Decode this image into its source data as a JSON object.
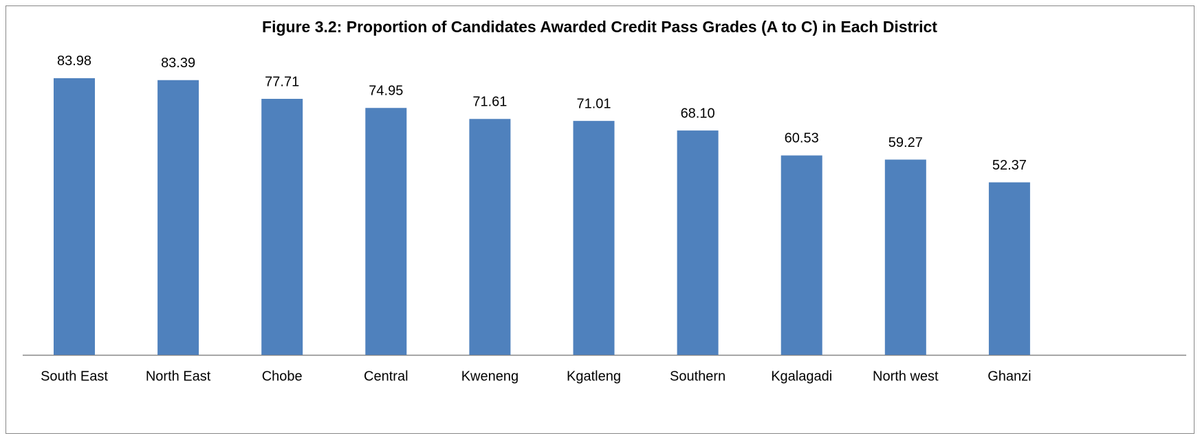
{
  "chart_data": {
    "type": "bar",
    "title": "Figure 3.2: Proportion of Candidates Awarded Credit Pass Grades (A to C) in Each District",
    "categories": [
      "South East",
      "North East",
      "Chobe",
      "Central",
      "Kweneng",
      "Kgatleng",
      "Southern",
      "Kgalagadi",
      "North west",
      "Ghanzi"
    ],
    "values": [
      83.98,
      83.39,
      77.71,
      74.95,
      71.61,
      71.01,
      68.1,
      60.53,
      59.27,
      52.37
    ],
    "value_labels": [
      "83.98",
      "83.39",
      "77.71",
      "74.95",
      "71.61",
      "71.01",
      "68.10",
      "60.53",
      "59.27",
      "52.37"
    ],
    "color": "#4f81bd",
    "ylim": [
      0,
      90
    ]
  }
}
